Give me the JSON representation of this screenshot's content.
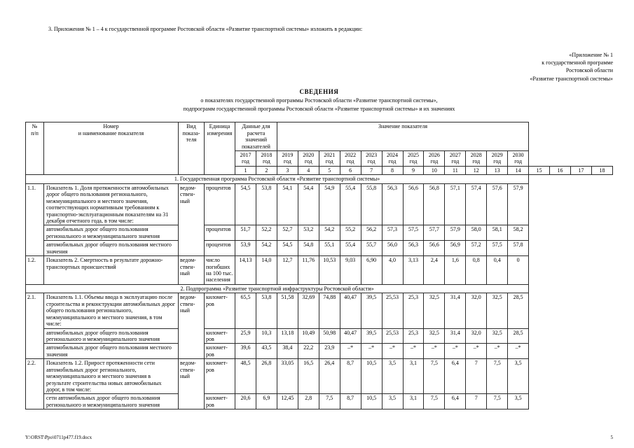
{
  "page": {
    "intro": "3. Приложения № 1 – 4 к государственной программе Ростовской области «Развитие транспортной системы» изложить в редакции:",
    "annex_lines": [
      "«Приложение № 1",
      "к государственной программе",
      "Ростовской области",
      "«Развитие транспортной системы»"
    ],
    "title": "СВЕДЕНИЯ",
    "subtitle_lines": [
      "о показателях государственной программы Ростовской области «Развитие транспортной системы»,",
      "подпрограмм государственной программы Ростовской области «Развитие транспортной системы» и их значениях"
    ],
    "footer": {
      "file_path": "Y:\\ORST\\Ppo\\0711p477.f19.docx",
      "page_number": "5"
    }
  },
  "table": {
    "header": {
      "num": "№\nп/п",
      "name": "Номер\nи наименование показателя",
      "kind": "Вид\nпоказа-\nтеля",
      "unit": "Единица\nизмерения",
      "calc_group": "Данные для расчета\nзначений показателей",
      "value_group": "Значение показателя",
      "year_suffix": "год",
      "years": [
        "2017",
        "2018",
        "2019",
        "2020",
        "2021",
        "2022",
        "2023",
        "2024",
        "2025",
        "2026",
        "2027",
        "2028",
        "2029",
        "2030"
      ],
      "col_numbers": [
        "1",
        "2",
        "3",
        "4",
        "5",
        "6",
        "7",
        "8",
        "9",
        "10",
        "11",
        "12",
        "13",
        "14",
        "15",
        "16",
        "17",
        "18"
      ]
    },
    "rows": [
      {
        "type": "section",
        "text": "1. Государственная программа Ростовской области «Развитие транспортной системы»"
      },
      {
        "type": "main",
        "num": "1.1.",
        "span": 3,
        "name": "Показатель 1. Доля протяженности автомобильных дорог общего пользования регионального, межмуниципального и местного значения, соответствующих нормативным требованиям к транспортно-эксплуатационным показателям на 31 декабря отчетного года, в том числе:",
        "vid": "ведом-\nствен-\nный",
        "unit": "процентов",
        "values": [
          "54,5",
          "53,8",
          "54,1",
          "54,4",
          "54,9",
          "55,4",
          "55,8",
          "56,3",
          "56,6",
          "56,8",
          "57,1",
          "57,4",
          "57,6",
          "57,9"
        ]
      },
      {
        "type": "sub",
        "name": "автомобильных дорог общего пользования регионального и межмуниципального значения",
        "unit": "процентов",
        "values": [
          "51,7",
          "52,2",
          "52,7",
          "53,2",
          "54,2",
          "55,2",
          "56,2",
          "57,3",
          "57,5",
          "57,7",
          "57,9",
          "58,0",
          "58,1",
          "58,2"
        ]
      },
      {
        "type": "sub",
        "name": "автомобильных дорог общего пользования местного значения",
        "unit": "процентов",
        "values": [
          "53,9",
          "54,2",
          "54,5",
          "54,8",
          "55,1",
          "55,4",
          "55,7",
          "56,0",
          "56,3",
          "56,6",
          "56,9",
          "57,2",
          "57,5",
          "57,8"
        ]
      },
      {
        "type": "main",
        "num": "1.2.",
        "span": 1,
        "name": "Показатель 2. Смертность в результате дорожно-транспортных происшествий",
        "vid": "ведом-\nствен-\nный",
        "unit": "число погибших на 100 тыс. населения",
        "values": [
          "14,13",
          "14,0",
          "12,7",
          "11,76",
          "10,53",
          "9,03",
          "6,90",
          "4,0",
          "3,13",
          "2,4",
          "1,6",
          "0,8",
          "0,4",
          "0"
        ]
      },
      {
        "type": "section",
        "text": "2. Подпрограмма «Развитие транспортной инфраструктуры Ростовской области»"
      },
      {
        "type": "main",
        "num": "2.1.",
        "span": 3,
        "name": "Показатель 1.1. Объемы ввода в эксплуатацию после строительства и реконструкции автомобильных дорог общего пользования регионального, межмуниципального и местного значения, в том числе:",
        "vid": "ведом-\nствен-\nный",
        "unit": "километ-\nров",
        "values": [
          "65,5",
          "53,8",
          "51,58",
          "32,69",
          "74,88",
          "40,47",
          "39,5",
          "25,53",
          "25,3",
          "32,5",
          "31,4",
          "32,0",
          "32,5",
          "28,5"
        ]
      },
      {
        "type": "sub",
        "name": "автомобильных дорог общего пользования регионального и межмуниципального значения",
        "unit": "километ-\nров",
        "values": [
          "25,9",
          "10,3",
          "13,18",
          "10,49",
          "50,98",
          "40,47",
          "39,5",
          "25,53",
          "25,3",
          "32,5",
          "31,4",
          "32,0",
          "32,5",
          "28,5"
        ]
      },
      {
        "type": "sub",
        "name": "автомобильных дорог общего пользования местного значения",
        "unit": "километ-\nров",
        "values": [
          "39,6",
          "43,5",
          "38,4",
          "22,2",
          "23,9",
          "–*",
          "–*",
          "–*",
          "–*",
          "–*",
          "–*",
          "–*",
          "–*",
          "–*"
        ]
      },
      {
        "type": "main",
        "num": "2.2.",
        "span": 2,
        "name": "Показатель 1.2. Прирост протяженности сети автомобильных дорог регионального, межмуниципального и местного значения в результате строительства новых автомобильных дорог, в том числе:",
        "vid": "ведом-\nствен-\nный",
        "unit": "километ-\nров",
        "values": [
          "48,5",
          "26,8",
          "33,05",
          "16,5",
          "26,4",
          "8,7",
          "10,5",
          "3,5",
          "3,1",
          "7,5",
          "6,4",
          "7",
          "7,5",
          "3,5"
        ]
      },
      {
        "type": "sub",
        "name": "сети автомобильных дорог общего пользования регионального и межмуниципального значения",
        "unit": "километ-\nров",
        "values": [
          "20,6",
          "6,9",
          "12,45",
          "2,8",
          "7,5",
          "8,7",
          "10,5",
          "3,5",
          "3,1",
          "7,5",
          "6,4",
          "7",
          "7,5",
          "3,5"
        ]
      }
    ]
  }
}
